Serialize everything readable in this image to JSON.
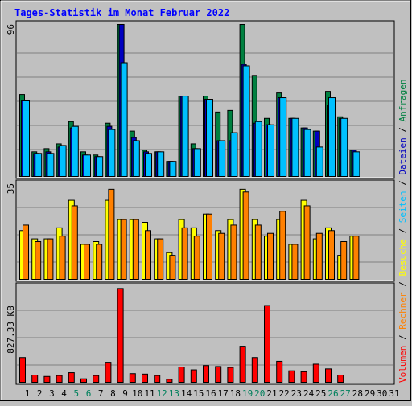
{
  "title": "Tages-Statistik im Monat Februar 2022",
  "chart_data": [
    {
      "type": "bar",
      "name": "hits-files-pages",
      "categories": [
        "1",
        "2",
        "3",
        "4",
        "5",
        "6",
        "7",
        "8",
        "9",
        "10",
        "11",
        "12",
        "13",
        "14",
        "15",
        "16",
        "17",
        "18",
        "19",
        "20",
        "21",
        "22",
        "23",
        "24",
        "25",
        "26",
        "27",
        "28",
        "29",
        "30",
        "31"
      ],
      "weekend_days": [
        "5",
        "6",
        "12",
        "13",
        "19",
        "20",
        "26",
        "27"
      ],
      "ytick_label": "96",
      "ylim": [
        0,
        96
      ],
      "series": [
        {
          "name": "Anfragen",
          "color": "#008040",
          "values": [
            52,
            16,
            18,
            21,
            35,
            16,
            14,
            34,
            96,
            29,
            17,
            16,
            10,
            51,
            21,
            51,
            41,
            42,
            96,
            64,
            37,
            53,
            37,
            31,
            29,
            54,
            38,
            17,
            0,
            0,
            0
          ]
        },
        {
          "name": "Dateien",
          "color": "#0000c0",
          "values": [
            48,
            15,
            16,
            19,
            31,
            14,
            13,
            32,
            96,
            25,
            16,
            16,
            10,
            51,
            18,
            49,
            23,
            23,
            71,
            34,
            33,
            50,
            37,
            31,
            29,
            45,
            37,
            17,
            0,
            0,
            0
          ]
        },
        {
          "name": "Seiten",
          "color": "#00c0ff",
          "values": [
            48,
            15,
            15,
            20,
            32,
            14,
            13,
            30,
            72,
            23,
            15,
            16,
            10,
            51,
            18,
            49,
            23,
            28,
            70,
            35,
            33,
            50,
            37,
            30,
            19,
            50,
            37,
            16,
            0,
            0,
            0
          ]
        }
      ],
      "vertical_label": [
        "Dateien",
        "Seiten",
        "Anfragen"
      ]
    },
    {
      "type": "bar",
      "name": "visits-computers",
      "ytick_label": "35",
      "ylim": [
        0,
        35
      ],
      "series": [
        {
          "name": "Besuche",
          "color": "#ffff00",
          "values": [
            18,
            15,
            15,
            19,
            29,
            13,
            14,
            29,
            22,
            22,
            21,
            15,
            10,
            22,
            19,
            24,
            18,
            22,
            33,
            22,
            16,
            22,
            13,
            29,
            15,
            19,
            9,
            16,
            0,
            0,
            0
          ]
        },
        {
          "name": "Rechner",
          "color": "#ff8000",
          "values": [
            20,
            14,
            15,
            16,
            27,
            13,
            13,
            33,
            22,
            22,
            18,
            15,
            9,
            19,
            16,
            24,
            17,
            20,
            32,
            20,
            17,
            25,
            13,
            27,
            17,
            18,
            14,
            16,
            0,
            0,
            0
          ]
        }
      ],
      "vertical_label": [
        "Besuche",
        "Rechner"
      ]
    },
    {
      "type": "bar",
      "name": "volume",
      "ytick_label": "827.33 KB",
      "ylim": [
        0,
        1020
      ],
      "series": [
        {
          "name": "Volumen",
          "color": "#ff0000",
          "values": [
            270,
            85,
            70,
            80,
            110,
            45,
            80,
            220,
            1000,
            100,
            95,
            80,
            40,
            170,
            140,
            185,
            175,
            165,
            390,
            270,
            820,
            230,
            130,
            120,
            200,
            150,
            85,
            0,
            0,
            0,
            0
          ]
        }
      ],
      "vertical_label": [
        "Volumen"
      ]
    }
  ],
  "legend_colors": {
    "Volumen": "#ff0000",
    "Rechner": "#ff8000",
    "Besuche": "#ffff00",
    "Seiten": "#00c0ff",
    "Dateien": "#0000c0",
    "Anfragen": "#008040",
    "separator": "#000000"
  },
  "colors": {
    "background": "#c0c0c0",
    "title": "#0000ff",
    "weekday_label": "#000000",
    "weekend_label": "#00805c"
  }
}
